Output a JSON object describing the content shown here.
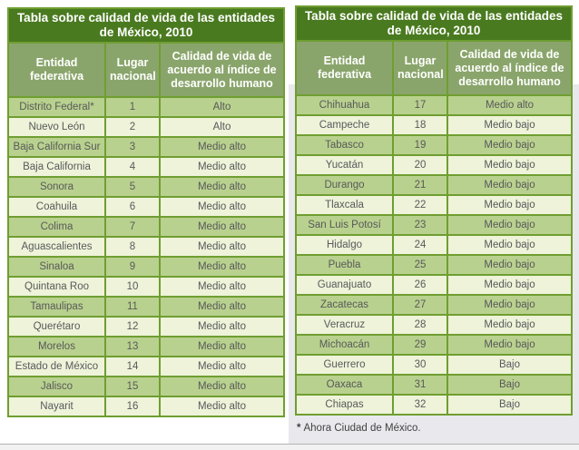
{
  "colors": {
    "title_bg": "#4a7a1f",
    "header_bg": "#8aa56b",
    "row_green": "#b9d18e",
    "row_cream": "#eef3d9",
    "border": "#6f9e31",
    "text_row": "#58595b",
    "text_header": "#ffffff",
    "right_panel": "#e9e9ed",
    "bottom_band": "#f2f2f2",
    "band_line": "#b3b3b3",
    "footnote": "#414042",
    "page_bg": "#ffffff"
  },
  "tables": [
    {
      "title": "Tabla sobre calidad de vida de las entidades de México, 2010",
      "columns": [
        "Entidad federativa",
        "Lugar nacional",
        "Calidad de vida de acuerdo al índice de desarrollo humano"
      ],
      "rows": [
        {
          "entidad": "Distrito Federal*",
          "lugar": "1",
          "calidad": "Alto"
        },
        {
          "entidad": "Nuevo León",
          "lugar": "2",
          "calidad": "Alto"
        },
        {
          "entidad": "Baja California Sur",
          "lugar": "3",
          "calidad": "Medio alto"
        },
        {
          "entidad": "Baja California",
          "lugar": "4",
          "calidad": "Medio alto"
        },
        {
          "entidad": "Sonora",
          "lugar": "5",
          "calidad": "Medio alto"
        },
        {
          "entidad": "Coahuila",
          "lugar": "6",
          "calidad": "Medio alto"
        },
        {
          "entidad": "Colima",
          "lugar": "7",
          "calidad": "Medio alto"
        },
        {
          "entidad": "Aguascalientes",
          "lugar": "8",
          "calidad": "Medio alto"
        },
        {
          "entidad": "Sinaloa",
          "lugar": "9",
          "calidad": "Medio alto"
        },
        {
          "entidad": "Quintana Roo",
          "lugar": "10",
          "calidad": "Medio alto"
        },
        {
          "entidad": "Tamaulipas",
          "lugar": "11",
          "calidad": "Medio alto"
        },
        {
          "entidad": "Querétaro",
          "lugar": "12",
          "calidad": "Medio alto"
        },
        {
          "entidad": "Morelos",
          "lugar": "13",
          "calidad": "Medio alto"
        },
        {
          "entidad": "Estado de México",
          "lugar": "14",
          "calidad": "Medio alto"
        },
        {
          "entidad": "Jalisco",
          "lugar": "15",
          "calidad": "Medio alto"
        },
        {
          "entidad": "Nayarit",
          "lugar": "16",
          "calidad": "Medio alto"
        }
      ]
    },
    {
      "title": "Tabla sobre calidad de vida de las entidades de México, 2010",
      "columns": [
        "Entidad federativa",
        "Lugar nacional",
        "Calidad de vida de acuerdo al índice de desarrollo humano"
      ],
      "rows": [
        {
          "entidad": "Chihuahua",
          "lugar": "17",
          "calidad": "Medio alto"
        },
        {
          "entidad": "Campeche",
          "lugar": "18",
          "calidad": "Medio bajo"
        },
        {
          "entidad": "Tabasco",
          "lugar": "19",
          "calidad": "Medio bajo"
        },
        {
          "entidad": "Yucatán",
          "lugar": "20",
          "calidad": "Medio bajo"
        },
        {
          "entidad": "Durango",
          "lugar": "21",
          "calidad": "Medio bajo"
        },
        {
          "entidad": "Tlaxcala",
          "lugar": "22",
          "calidad": "Medio bajo"
        },
        {
          "entidad": "San Luis Potosí",
          "lugar": "23",
          "calidad": "Medio bajo"
        },
        {
          "entidad": "Hidalgo",
          "lugar": "24",
          "calidad": "Medio bajo"
        },
        {
          "entidad": "Puebla",
          "lugar": "25",
          "calidad": "Medio bajo"
        },
        {
          "entidad": "Guanajuato",
          "lugar": "26",
          "calidad": "Medio bajo"
        },
        {
          "entidad": "Zacatecas",
          "lugar": "27",
          "calidad": "Medio bajo"
        },
        {
          "entidad": "Veracruz",
          "lugar": "28",
          "calidad": "Medio bajo"
        },
        {
          "entidad": "Michoacán",
          "lugar": "29",
          "calidad": "Medio bajo"
        },
        {
          "entidad": "Guerrero",
          "lugar": "30",
          "calidad": "Bajo"
        },
        {
          "entidad": "Oaxaca",
          "lugar": "31",
          "calidad": "Bajo"
        },
        {
          "entidad": "Chiapas",
          "lugar": "32",
          "calidad": "Bajo"
        }
      ]
    }
  ],
  "footnote": {
    "marker": "*",
    "text": "Ahora Ciudad de México."
  }
}
